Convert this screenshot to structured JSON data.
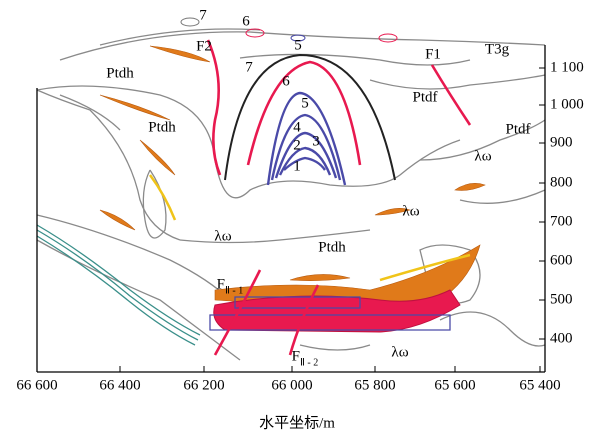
{
  "section": {
    "x_axis": {
      "title": "水平坐标/m",
      "ticks": [
        "66 600",
        "66 400",
        "66 200",
        "66 000",
        "65 800",
        "65 600",
        "65 400"
      ]
    },
    "y_axis": {
      "ticks": [
        "1 100",
        "1 000",
        "900",
        "800",
        "700",
        "600",
        "500",
        "400"
      ]
    },
    "labels": [
      "7",
      "6",
      "5",
      "F2",
      "7",
      "6",
      "T3g",
      "F1",
      "Ptdh",
      "Ptdh",
      "Ptdf",
      "Ptdf",
      "λω",
      "λω",
      "λω",
      "Ptdh",
      "λω",
      "5",
      "4",
      "3",
      "2",
      "1"
    ],
    "faults": [
      {
        "main": "F",
        "sub": "Ⅱ - 1"
      },
      {
        "main": "F",
        "sub": "Ⅱ - 2"
      }
    ]
  }
}
